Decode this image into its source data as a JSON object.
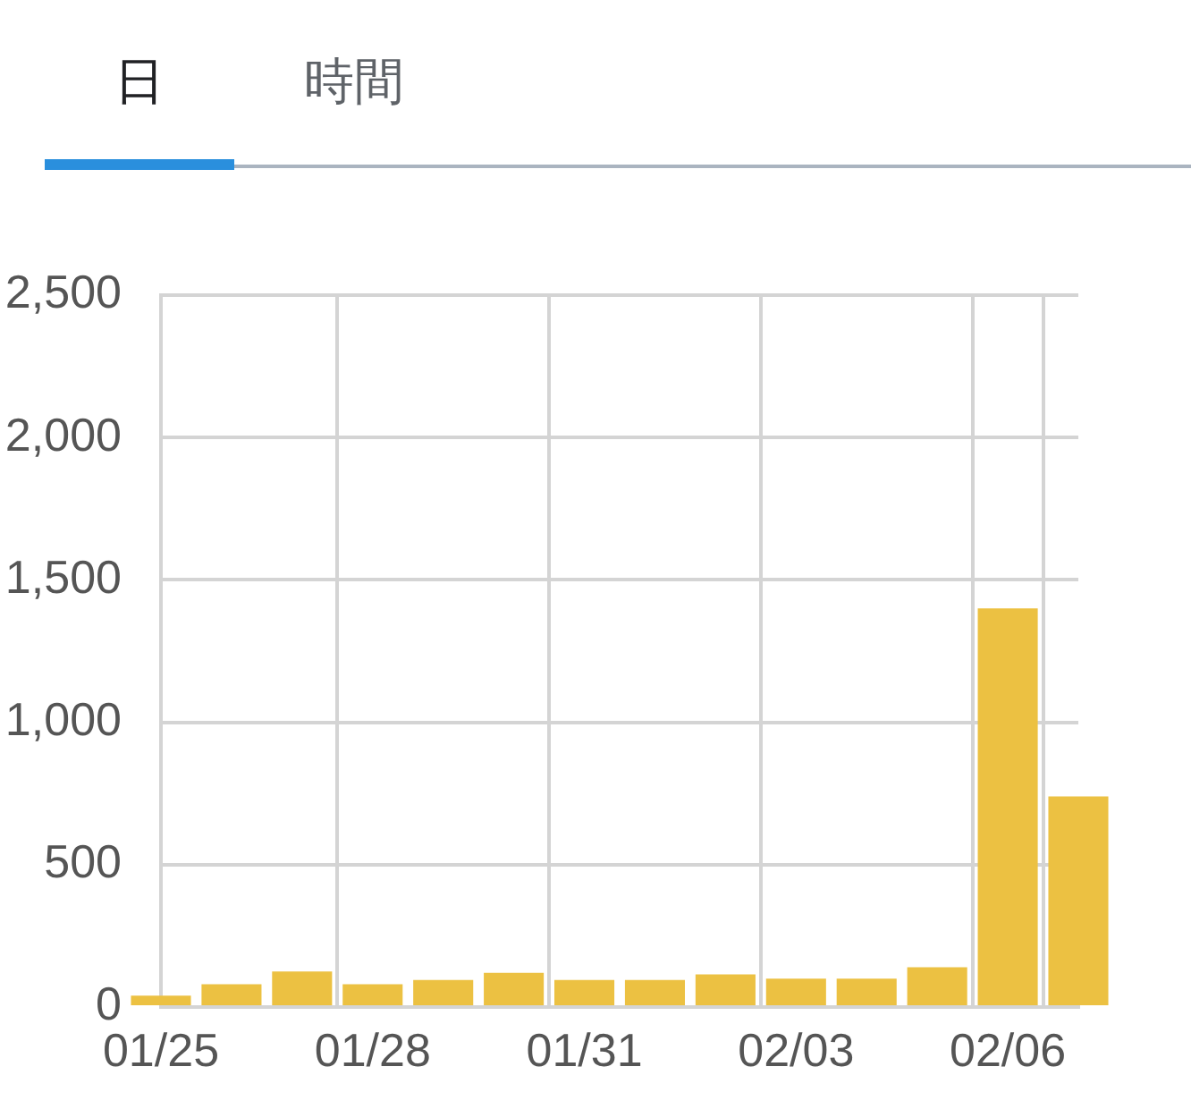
{
  "chart_data": {
    "type": "bar",
    "annotations": [
      "日",
      "時間"
    ],
    "categories": [
      "01/25",
      null,
      null,
      "01/28",
      null,
      null,
      "01/31",
      null,
      null,
      "02/03",
      null,
      null,
      "02/06",
      null
    ],
    "values": [
      40,
      80,
      125,
      80,
      95,
      120,
      95,
      95,
      115,
      100,
      100,
      140,
      1400,
      740
    ],
    "color": "#ecc142",
    "ylim": [
      0,
      2500
    ],
    "yticks": [
      0,
      500,
      {
        "value": 1000,
        "label": "1,000"
      },
      {
        "value": 1500,
        "label": "1,500"
      },
      {
        "value": 2000,
        "label": "2,000"
      },
      {
        "value": 2500,
        "label": "2,500"
      }
    ],
    "grid": true
  }
}
